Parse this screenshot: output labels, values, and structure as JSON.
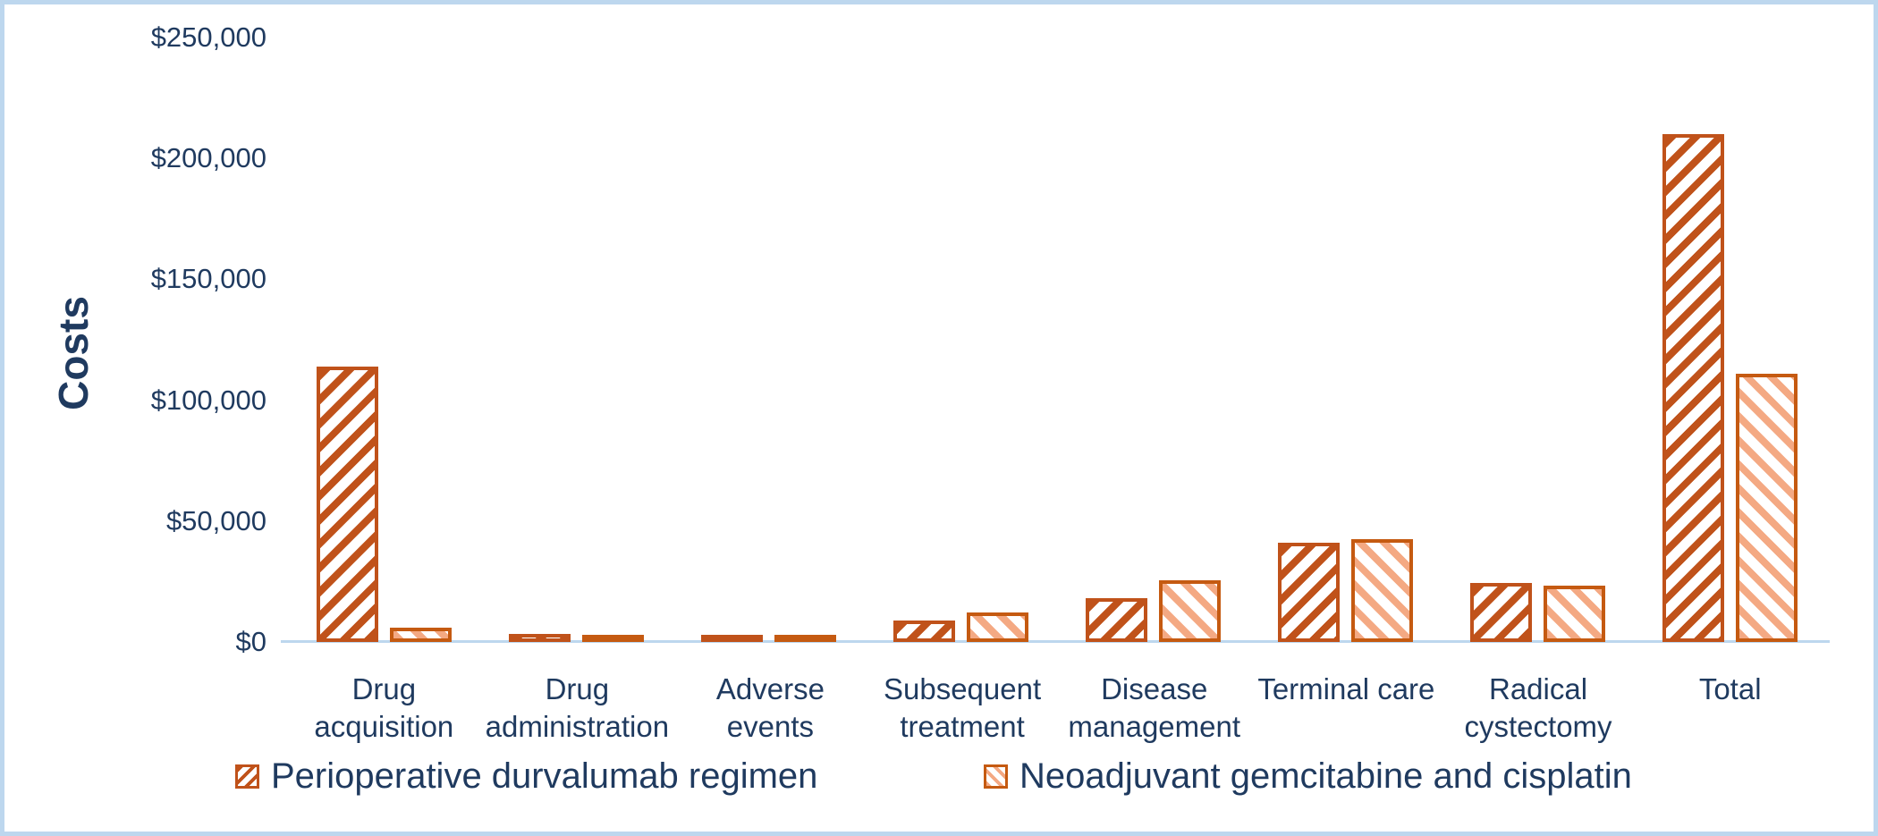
{
  "chart_data": {
    "type": "bar",
    "title": "",
    "xlabel": "",
    "ylabel": "Costs",
    "ylim": [
      0,
      250000
    ],
    "grid": false,
    "legend_position": "bottom",
    "yticks": [
      {
        "value": 0,
        "label": "$0"
      },
      {
        "value": 50000,
        "label": "$50,000"
      },
      {
        "value": 100000,
        "label": "$100,000"
      },
      {
        "value": 150000,
        "label": "$150,000"
      },
      {
        "value": 200000,
        "label": "$200,000"
      },
      {
        "value": 250000,
        "label": "$250,000"
      }
    ],
    "categories": [
      "Drug acquisition",
      "Drug administration",
      "Adverse events",
      "Subsequent treatment",
      "Disease management",
      "Terminal care",
      "Radical cystectomy",
      "Total"
    ],
    "series": [
      {
        "name": "Perioperative durvalumab regimen",
        "pattern": "diagonal-up-hatch",
        "color": "#C0521A",
        "values": [
          114000,
          3300,
          1400,
          8800,
          18000,
          41200,
          24300,
          210000
        ]
      },
      {
        "name": "Neoadjuvant gemcitabine and cisplatin",
        "pattern": "diagonal-down-hatch",
        "color": "#F4A983",
        "border_color": "#C55A11",
        "values": [
          6000,
          2200,
          1400,
          12100,
          25400,
          42600,
          23200,
          111000
        ]
      }
    ],
    "colors": {
      "text": "#1F3A5F",
      "axis": "#BDD7EE",
      "frame": "#BDD7EE",
      "background": "#FFFFFF"
    }
  }
}
